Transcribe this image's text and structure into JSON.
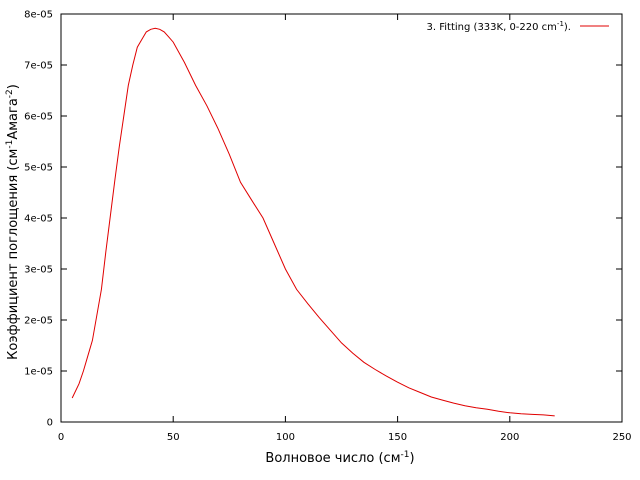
{
  "chart_data": {
    "type": "line",
    "title": "",
    "xlabel": "Волновое число (см-1)",
    "xlabel_main": "Волновое число (см",
    "xlabel_sup": "-1",
    "xlabel_end": ")",
    "ylabel": "Коэффициент поглощения (см-1Амага-2)",
    "ylabel_main": "Коэффициент поглощения (см",
    "ylabel_sup1": "-1",
    "ylabel_mid": "Амага",
    "ylabel_sup2": "-2",
    "ylabel_end": ")",
    "xlim": [
      0,
      250
    ],
    "ylim": [
      0,
      8e-05
    ],
    "x_ticks": [
      0,
      50,
      100,
      150,
      200,
      250
    ],
    "x_tick_labels": [
      "0",
      "50",
      "100",
      "150",
      "200",
      "250"
    ],
    "y_ticks": [
      0,
      1e-05,
      2e-05,
      3e-05,
      4e-05,
      5e-05,
      6e-05,
      7e-05,
      8e-05
    ],
    "y_tick_labels": [
      "0",
      "1e-05",
      "2e-05",
      "3e-05",
      "4e-05",
      "5e-05",
      "6e-05",
      "7e-05",
      "8e-05"
    ],
    "grid": false,
    "legend_position": "top-right",
    "series": [
      {
        "name": "3. Fitting (333K, 0-220 cm-1).",
        "legend_main": "3. Fitting (333K, 0-220 cm",
        "legend_sup": "-1",
        "legend_end": ").",
        "color": "#e00000",
        "x": [
          5,
          8,
          10,
          12,
          14,
          16,
          18,
          20,
          22,
          24,
          26,
          28,
          30,
          32,
          34,
          36,
          38,
          40,
          42,
          44,
          46,
          48,
          50,
          55,
          60,
          65,
          70,
          75,
          80,
          85,
          90,
          95,
          100,
          105,
          110,
          115,
          120,
          125,
          130,
          135,
          140,
          145,
          150,
          155,
          160,
          165,
          170,
          175,
          180,
          185,
          190,
          195,
          200,
          205,
          210,
          215,
          220
        ],
        "y": [
          4.7e-06,
          7.5e-06,
          1e-05,
          1.3e-05,
          1.6e-05,
          2.1e-05,
          2.6e-05,
          3.35e-05,
          4.05e-05,
          4.75e-05,
          5.4e-05,
          6e-05,
          6.6e-05,
          7e-05,
          7.35e-05,
          7.5e-05,
          7.65e-05,
          7.7e-05,
          7.72e-05,
          7.7e-05,
          7.65e-05,
          7.55e-05,
          7.45e-05,
          7.05e-05,
          6.6e-05,
          6.2e-05,
          5.75e-05,
          5.25e-05,
          4.7e-05,
          4.35e-05,
          4e-05,
          3.5e-05,
          3e-05,
          2.6e-05,
          2.32e-05,
          2.05e-05,
          1.8e-05,
          1.55e-05,
          1.35e-05,
          1.17e-05,
          1.03e-05,
          9e-06,
          7.8e-06,
          6.7e-06,
          5.8e-06,
          4.9e-06,
          4.3e-06,
          3.7e-06,
          3.2e-06,
          2.8e-06,
          2.5e-06,
          2.1e-06,
          1.8e-06,
          1.6e-06,
          1.5e-06,
          1.4e-06,
          1.2e-06
        ]
      }
    ]
  }
}
